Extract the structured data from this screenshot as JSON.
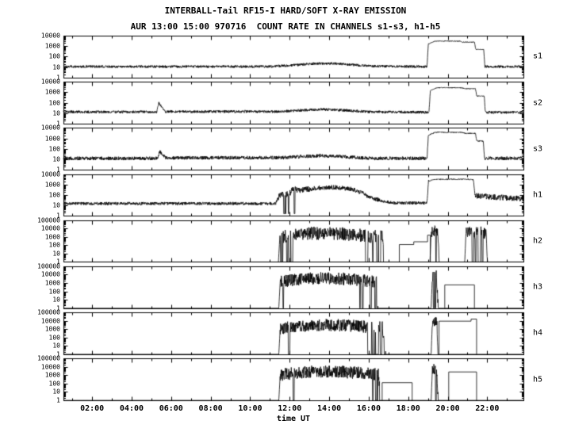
{
  "chart_data": {
    "type": "line",
    "title": "INTERBALL-Tail RF15-I HARD/SOFT X-RAY EMISSION",
    "subtitle": "AUR 13:00 15:00 970716  COUNT RATE IN CHANNELS s1-s3, h1-h5",
    "xlabel": "time UT",
    "line_color": "#000000",
    "background_color": "#ffffff",
    "grid": false,
    "x_axis": {
      "lim": [
        0.55,
        23.83
      ],
      "major_ticks": [
        2,
        4,
        6,
        8,
        10,
        12,
        14,
        16,
        18,
        20,
        22
      ],
      "tick_labels": [
        "02:00",
        "04:00",
        "06:00",
        "08:00",
        "10:00",
        "12:00",
        "14:00",
        "16:00",
        "18:00",
        "20:00",
        "22:00"
      ],
      "minor_step": 1
    },
    "panels": [
      {
        "label": "s1",
        "decades": 4,
        "yticks": [
          "1",
          "10",
          "100",
          "1000",
          "10000"
        ],
        "base": [
          [
            0.55,
            11
          ],
          [
            11.0,
            11
          ],
          [
            12.2,
            15
          ],
          [
            13.2,
            21
          ],
          [
            14.2,
            22
          ],
          [
            15.2,
            16
          ],
          [
            16.2,
            12
          ],
          [
            18.95,
            11
          ],
          [
            19.02,
            1600
          ],
          [
            19.35,
            3000
          ],
          [
            20.6,
            3000
          ],
          [
            20.75,
            2400
          ],
          [
            21.35,
            2400
          ],
          [
            21.42,
            480
          ],
          [
            21.82,
            480
          ],
          [
            21.88,
            11
          ],
          [
            23.83,
            11
          ]
        ],
        "spreads": [
          [
            0.55,
            0.12
          ],
          [
            19.02,
            0.035
          ],
          [
            21.88,
            0.12
          ]
        ],
        "drops": [],
        "steps": []
      },
      {
        "label": "s2",
        "decades": 4,
        "yticks": [
          "1",
          "10",
          "100",
          "1000",
          "10000"
        ],
        "base": [
          [
            0.55,
            13
          ],
          [
            5.28,
            13
          ],
          [
            5.38,
            95
          ],
          [
            5.52,
            40
          ],
          [
            5.68,
            14
          ],
          [
            11.6,
            14
          ],
          [
            12.6,
            19
          ],
          [
            13.6,
            23
          ],
          [
            14.9,
            18
          ],
          [
            16.1,
            13
          ],
          [
            19.05,
            12
          ],
          [
            19.12,
            1500
          ],
          [
            19.45,
            2700
          ],
          [
            20.7,
            2700
          ],
          [
            20.85,
            2200
          ],
          [
            21.4,
            2200
          ],
          [
            21.47,
            430
          ],
          [
            21.85,
            430
          ],
          [
            21.9,
            12
          ],
          [
            23.83,
            12
          ]
        ],
        "spreads": [
          [
            0.55,
            0.13
          ],
          [
            19.12,
            0.04
          ],
          [
            21.9,
            0.13
          ]
        ],
        "drops": [],
        "steps": []
      },
      {
        "label": "s3",
        "decades": 4,
        "yticks": [
          "1",
          "10",
          "100",
          "1000",
          "10000"
        ],
        "base": [
          [
            0.55,
            12
          ],
          [
            5.3,
            12
          ],
          [
            5.42,
            55
          ],
          [
            5.72,
            14
          ],
          [
            11.6,
            14
          ],
          [
            12.6,
            18
          ],
          [
            13.6,
            22
          ],
          [
            15.1,
            16
          ],
          [
            16.3,
            12
          ],
          [
            18.95,
            12
          ],
          [
            19.02,
            1900
          ],
          [
            19.35,
            3800
          ],
          [
            20.75,
            3800
          ],
          [
            20.9,
            3000
          ],
          [
            21.4,
            3000
          ],
          [
            21.47,
            560
          ],
          [
            21.8,
            560
          ],
          [
            21.86,
            12
          ],
          [
            23.83,
            12
          ]
        ],
        "spreads": [
          [
            0.55,
            0.17
          ],
          [
            19.02,
            0.05
          ],
          [
            21.86,
            0.17
          ]
        ],
        "drops": [],
        "steps": []
      },
      {
        "label": "h1",
        "decades": 4,
        "yticks": [
          "1",
          "10",
          "100",
          "1000",
          "10000"
        ],
        "base": [
          [
            0.55,
            15
          ],
          [
            11.3,
            15
          ],
          [
            11.42,
            60
          ],
          [
            11.7,
            140
          ],
          [
            11.95,
            110
          ],
          [
            12.15,
            320
          ],
          [
            12.7,
            300
          ],
          [
            13.3,
            450
          ],
          [
            14.3,
            550
          ],
          [
            15.1,
            380
          ],
          [
            15.6,
            180
          ],
          [
            16.1,
            60
          ],
          [
            16.7,
            25
          ],
          [
            17.3,
            17
          ],
          [
            18.95,
            17
          ],
          [
            19.03,
            2200
          ],
          [
            19.4,
            3200
          ],
          [
            20.9,
            3200
          ],
          [
            21.3,
            2800
          ],
          [
            21.38,
            90
          ],
          [
            22.4,
            60
          ],
          [
            23.83,
            45
          ]
        ],
        "spreads": [
          [
            0.55,
            0.15
          ],
          [
            11.42,
            0.3
          ],
          [
            13.0,
            0.22
          ],
          [
            16.5,
            0.15
          ],
          [
            19.03,
            0.05
          ],
          [
            21.38,
            0.28
          ]
        ],
        "drops": [
          [
            11.42,
            12.5,
            0.05,
            1.6
          ]
        ],
        "steps": []
      },
      {
        "label": "h2",
        "decades": 5,
        "yticks": [
          "1",
          "10",
          "100",
          "1000",
          "10000",
          "100000"
        ],
        "base": [
          [
            0.55,
            1
          ],
          [
            11.43,
            1
          ],
          [
            11.5,
            900
          ],
          [
            12.1,
            1600
          ],
          [
            13.1,
            2600
          ],
          [
            14.1,
            3000
          ],
          [
            15.1,
            2000
          ],
          [
            16.1,
            1200
          ],
          [
            16.7,
            900
          ],
          [
            16.78,
            1
          ],
          [
            19.1,
            1
          ],
          [
            19.16,
            4000
          ],
          [
            19.35,
            6500
          ],
          [
            19.5,
            5000
          ],
          [
            19.56,
            1
          ],
          [
            20.86,
            1
          ],
          [
            20.92,
            2200
          ],
          [
            21.5,
            3200
          ],
          [
            21.95,
            2600
          ],
          [
            22.02,
            1
          ],
          [
            23.83,
            1
          ]
        ],
        "spreads": [
          [
            0.55,
            0
          ],
          [
            11.5,
            0.8
          ],
          [
            16.78,
            0
          ],
          [
            19.16,
            0.7
          ],
          [
            19.56,
            0
          ],
          [
            20.92,
            0.8
          ],
          [
            22.02,
            0
          ]
        ],
        "drops": [
          [
            11.5,
            12.3,
            0.05,
            1
          ],
          [
            14.9,
            15.5,
            0.02,
            1
          ],
          [
            15.8,
            16.78,
            0.12,
            1
          ],
          [
            19.2,
            19.56,
            0.05,
            1
          ],
          [
            20.95,
            22.0,
            0.08,
            1
          ]
        ],
        "steps": [
          [
            [
              17.55,
              1
            ],
            [
              17.55,
              120
            ],
            [
              18.28,
              120
            ],
            [
              18.28,
              260
            ],
            [
              18.98,
              260
            ],
            [
              18.98,
              1600
            ],
            [
              19.12,
              1600
            ],
            [
              19.12,
              1
            ]
          ]
        ]
      },
      {
        "label": "h3",
        "decades": 5,
        "yticks": [
          "1",
          "10",
          "100",
          "1000",
          "10000",
          "100000"
        ],
        "base": [
          [
            0.55,
            1
          ],
          [
            11.45,
            1
          ],
          [
            11.52,
            1400
          ],
          [
            12.5,
            2800
          ],
          [
            13.5,
            4000
          ],
          [
            14.5,
            3400
          ],
          [
            15.5,
            2400
          ],
          [
            16.4,
            1400
          ],
          [
            16.48,
            1
          ],
          [
            19.16,
            1
          ],
          [
            19.22,
            5000
          ],
          [
            19.42,
            8000
          ],
          [
            19.52,
            1
          ],
          [
            23.83,
            1
          ]
        ],
        "spreads": [
          [
            0.55,
            0
          ],
          [
            11.52,
            0.75
          ],
          [
            16.48,
            0
          ],
          [
            19.22,
            0.65
          ],
          [
            19.52,
            0
          ]
        ],
        "drops": [
          [
            11.52,
            12.6,
            0.06,
            1
          ],
          [
            15.5,
            16.48,
            0.1,
            1
          ],
          [
            19.25,
            19.5,
            0.04,
            1
          ]
        ],
        "steps": [
          [
            [
              19.85,
              1
            ],
            [
              19.85,
              600
            ],
            [
              21.35,
              600
            ],
            [
              21.35,
              1
            ]
          ]
        ]
      },
      {
        "label": "h4",
        "decades": 5,
        "yticks": [
          "1",
          "10",
          "100",
          "1000",
          "10000",
          "100000"
        ],
        "base": [
          [
            0.55,
            1
          ],
          [
            11.45,
            1
          ],
          [
            11.52,
            1200
          ],
          [
            12.5,
            2400
          ],
          [
            13.5,
            3400
          ],
          [
            14.5,
            3000
          ],
          [
            15.5,
            2200
          ],
          [
            16.7,
            1500
          ],
          [
            16.88,
            1
          ],
          [
            19.16,
            1
          ],
          [
            19.22,
            6000
          ],
          [
            19.45,
            9000
          ],
          [
            19.5,
            1
          ],
          [
            23.83,
            1
          ]
        ],
        "spreads": [
          [
            0.55,
            0
          ],
          [
            11.52,
            0.75
          ],
          [
            16.88,
            0
          ],
          [
            19.22,
            0.55
          ],
          [
            19.5,
            0
          ]
        ],
        "drops": [
          [
            11.52,
            12.4,
            0.05,
            1
          ],
          [
            15.95,
            16.88,
            0.12,
            1
          ]
        ],
        "steps": [
          [
            [
              19.56,
              1
            ],
            [
              19.56,
              9000
            ],
            [
              21.18,
              9000
            ],
            [
              21.18,
              16000
            ],
            [
              21.46,
              16000
            ],
            [
              21.46,
              1
            ]
          ]
        ]
      },
      {
        "label": "h5",
        "decades": 5,
        "yticks": [
          "1",
          "10",
          "100",
          "1000",
          "10000",
          "100000"
        ],
        "base": [
          [
            0.55,
            1
          ],
          [
            11.45,
            1
          ],
          [
            11.52,
            1100
          ],
          [
            12.5,
            2200
          ],
          [
            13.5,
            3000
          ],
          [
            14.5,
            2700
          ],
          [
            15.5,
            1900
          ],
          [
            16.5,
            1200
          ],
          [
            16.58,
            1
          ],
          [
            19.16,
            1
          ],
          [
            19.22,
            4000
          ],
          [
            19.42,
            7000
          ],
          [
            19.52,
            1
          ],
          [
            23.83,
            1
          ]
        ],
        "spreads": [
          [
            0.55,
            0
          ],
          [
            11.52,
            0.75
          ],
          [
            16.58,
            0
          ],
          [
            19.22,
            0.65
          ],
          [
            19.52,
            0
          ]
        ],
        "drops": [
          [
            11.52,
            12.5,
            0.05,
            1
          ],
          [
            15.7,
            16.58,
            0.1,
            1
          ],
          [
            19.25,
            19.5,
            0.04,
            1
          ]
        ],
        "steps": [
          [
            [
              16.68,
              1
            ],
            [
              16.68,
              130
            ],
            [
              18.2,
              130
            ],
            [
              18.2,
              1
            ]
          ],
          [
            [
              20.05,
              1
            ],
            [
              20.05,
              2500
            ],
            [
              21.46,
              2500
            ],
            [
              21.46,
              1
            ]
          ]
        ]
      }
    ]
  }
}
